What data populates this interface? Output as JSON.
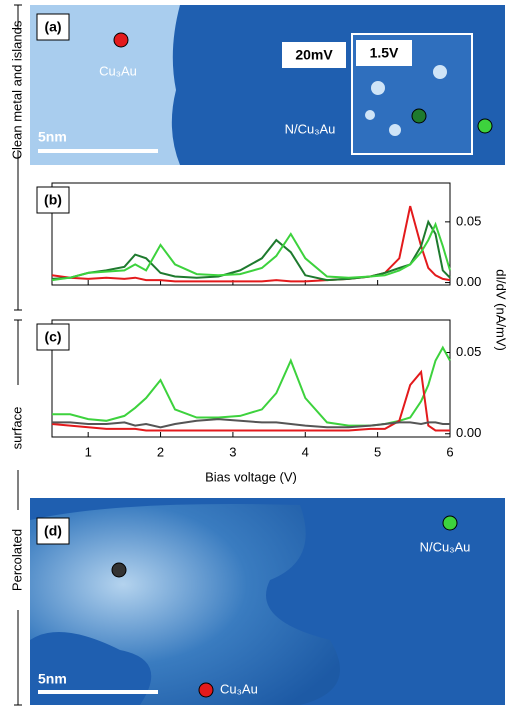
{
  "panels": {
    "a": {
      "label": "(a)",
      "metal": "Cu₃Au",
      "island": "N/Cu₃Au",
      "inset_left": "20mV",
      "inset_right": "1.5V",
      "scale": "5nm"
    },
    "d": {
      "label": "(d)",
      "island": "N/Cu₃Au",
      "metal": "Cu₃Au",
      "scale": "5nm"
    },
    "side_top": "Clean metal and islands",
    "side_bottom_left": "Percolated",
    "side_bottom_right": "surface"
  },
  "chart_data": [
    {
      "type": "line",
      "label": "(b)",
      "ylabel": "dI/dV (nA/mV)",
      "xlim": [
        0.5,
        6
      ],
      "ylim": [
        -0.002,
        0.082
      ],
      "yticks": [
        {
          "value": 0,
          "label": "0.00"
        },
        0.05
      ],
      "x": [
        0.5,
        0.75,
        1,
        1.25,
        1.5,
        1.65,
        1.8,
        2,
        2.2,
        2.5,
        2.8,
        3.1,
        3.4,
        3.6,
        3.8,
        4.0,
        4.3,
        4.6,
        4.9,
        5.1,
        5.3,
        5.45,
        5.6,
        5.7,
        5.8,
        5.9,
        6.0
      ],
      "series": [
        {
          "color": "#e31a1c",
          "values": [
            0.006,
            0.004,
            0.003,
            0.004,
            0.003,
            0.004,
            0.002,
            0.002,
            0.001,
            0.001,
            0.001,
            0.001,
            0.001,
            0.002,
            0.001,
            0.001,
            0.002,
            0.003,
            0.005,
            0.008,
            0.02,
            0.063,
            0.03,
            0.012,
            0.006,
            0.003,
            0.002
          ]
        },
        {
          "color": "#1e7a2e",
          "values": [
            0.003,
            0.004,
            0.008,
            0.01,
            0.013,
            0.023,
            0.02,
            0.008,
            0.005,
            0.004,
            0.005,
            0.01,
            0.02,
            0.035,
            0.025,
            0.006,
            0.002,
            0.003,
            0.005,
            0.008,
            0.012,
            0.015,
            0.03,
            0.05,
            0.04,
            0.01,
            0.004
          ]
        },
        {
          "color": "#3dd23d",
          "values": [
            0.002,
            0.004,
            0.008,
            0.009,
            0.01,
            0.015,
            0.01,
            0.031,
            0.015,
            0.007,
            0.006,
            0.007,
            0.012,
            0.022,
            0.04,
            0.02,
            0.005,
            0.004,
            0.005,
            0.006,
            0.01,
            0.015,
            0.025,
            0.035,
            0.048,
            0.03,
            0.01
          ]
        }
      ]
    },
    {
      "type": "line",
      "label": "(c)",
      "xlabel": "Bias voltage (V)",
      "xlim": [
        0.5,
        6
      ],
      "ylim": [
        -0.002,
        0.07
      ],
      "xticks": [
        1,
        2,
        3,
        4,
        5,
        6
      ],
      "yticks": [
        {
          "value": 0,
          "label": "0.00"
        },
        0.05
      ],
      "x": [
        0.5,
        0.75,
        1,
        1.25,
        1.5,
        1.65,
        1.8,
        2,
        2.2,
        2.5,
        2.8,
        3.1,
        3.4,
        3.6,
        3.8,
        4.0,
        4.3,
        4.6,
        4.9,
        5.1,
        5.3,
        5.45,
        5.6,
        5.7,
        5.8,
        5.9,
        6.0
      ],
      "series": [
        {
          "color": "#3dd23d",
          "values": [
            0.012,
            0.012,
            0.009,
            0.008,
            0.011,
            0.016,
            0.022,
            0.033,
            0.015,
            0.01,
            0.01,
            0.011,
            0.015,
            0.025,
            0.045,
            0.022,
            0.007,
            0.005,
            0.005,
            0.006,
            0.008,
            0.01,
            0.02,
            0.03,
            0.045,
            0.053,
            0.045
          ]
        },
        {
          "color": "#e31a1c",
          "values": [
            0.006,
            0.005,
            0.004,
            0.003,
            0.003,
            0.003,
            0.002,
            0.002,
            0.002,
            0.002,
            0.002,
            0.002,
            0.002,
            0.002,
            0.002,
            0.002,
            0.002,
            0.002,
            0.003,
            0.003,
            0.008,
            0.03,
            0.038,
            0.005,
            0.002,
            0.002,
            0.002
          ]
        },
        {
          "color": "#555555",
          "values": [
            0.007,
            0.007,
            0.006,
            0.006,
            0.007,
            0.005,
            0.006,
            0.004,
            0.006,
            0.008,
            0.009,
            0.008,
            0.007,
            0.007,
            0.006,
            0.005,
            0.004,
            0.004,
            0.005,
            0.006,
            0.007,
            0.007,
            0.006,
            0.007,
            0.007,
            0.006,
            0.006
          ]
        }
      ]
    }
  ]
}
